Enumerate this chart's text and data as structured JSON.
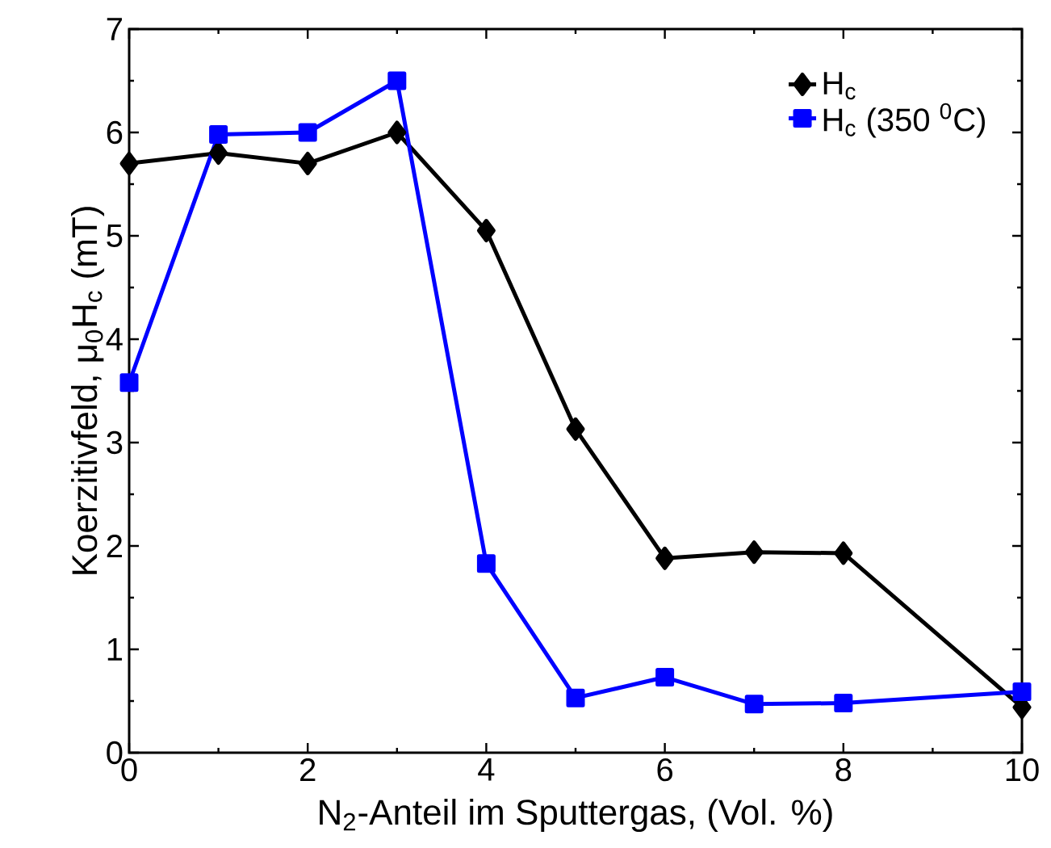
{
  "chart_data": {
    "type": "line",
    "xlabel": "N$_{2}$-Anteil im Sputtergas,  (Vol. %)",
    "ylabel": "Koerzitivfeld, μ$_{0}$H$_{c}$ (mT)",
    "x": [
      0,
      1,
      2,
      3,
      4,
      5,
      6,
      7,
      8,
      10
    ],
    "series": [
      {
        "name": "H$_{c}$",
        "color": "#000000",
        "marker": "diamond",
        "values": [
          5.7,
          5.8,
          5.7,
          6.0,
          5.05,
          3.13,
          1.88,
          1.94,
          1.93,
          0.44
        ]
      },
      {
        "name": "H$_{c}$ (350 $^{0}$C)",
        "color": "#0000ff",
        "marker": "square",
        "values": [
          3.58,
          5.98,
          6.0,
          6.5,
          1.83,
          0.53,
          0.73,
          0.47,
          0.48,
          0.59
        ]
      }
    ],
    "xlim": [
      0,
      10
    ],
    "ylim": [
      0,
      7
    ],
    "xticks": [
      0,
      2,
      4,
      6,
      8,
      10
    ],
    "yticks": [
      0,
      1,
      2,
      3,
      4,
      5,
      6,
      7
    ],
    "legend": "top right",
    "grid": false
  }
}
